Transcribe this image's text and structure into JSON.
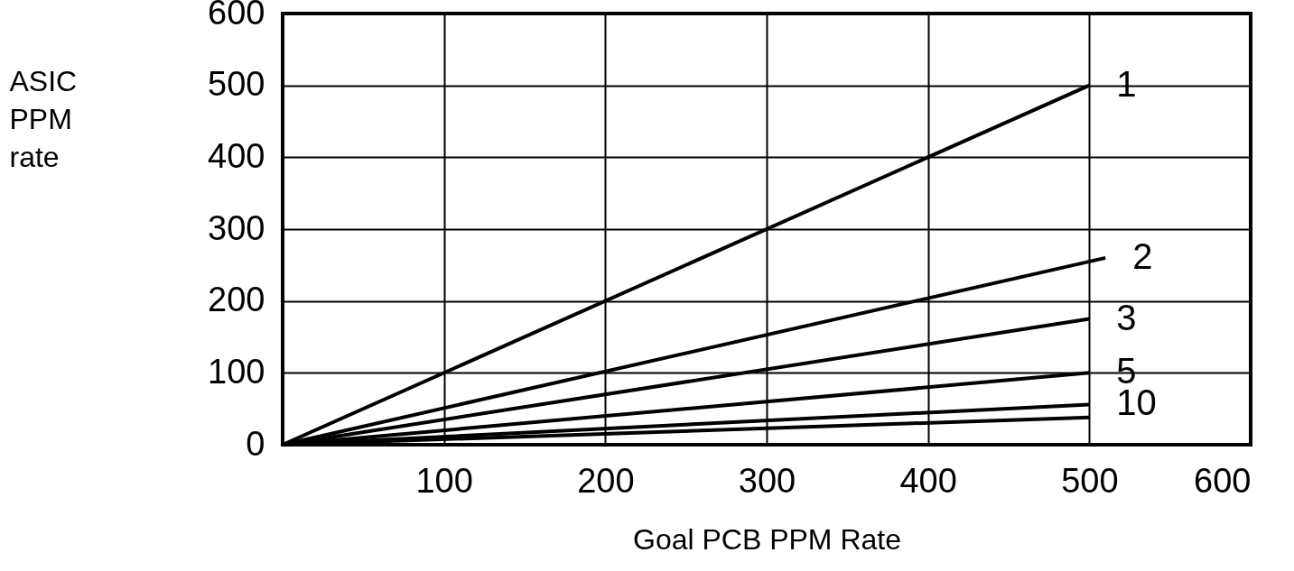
{
  "chart_data": {
    "type": "line",
    "xlabel": "Goal PCB PPM Rate",
    "ylabel": "ASIC PPM rate",
    "xlim": [
      0,
      600
    ],
    "ylim": [
      0,
      600
    ],
    "xticks": [
      100,
      200,
      300,
      400,
      500,
      600
    ],
    "yticks": [
      0,
      100,
      200,
      300,
      400,
      500,
      600
    ],
    "grid": true,
    "marker": "none",
    "line_style": "solid",
    "series": [
      {
        "name": "1",
        "color": "#000000",
        "x": [
          0,
          500
        ],
        "values": [
          0,
          500
        ]
      },
      {
        "name": "2",
        "color": "#000000",
        "x": [
          0,
          510
        ],
        "values": [
          0,
          260
        ]
      },
      {
        "name": "3",
        "color": "#000000",
        "x": [
          0,
          500
        ],
        "values": [
          0,
          175
        ]
      },
      {
        "name": "5",
        "color": "#000000",
        "x": [
          0,
          500
        ],
        "values": [
          0,
          100
        ]
      },
      {
        "name": "10",
        "color": "#000000",
        "x": [
          0,
          500
        ],
        "values": [
          0,
          56
        ]
      },
      {
        "color": "#000000",
        "x": [
          0,
          500
        ],
        "values": [
          0,
          38
        ]
      }
    ]
  }
}
